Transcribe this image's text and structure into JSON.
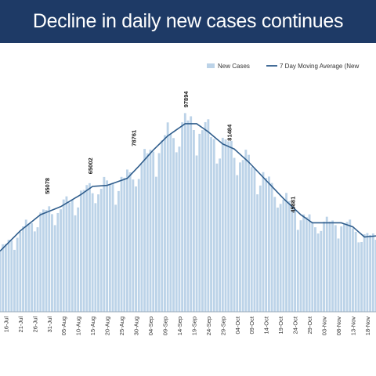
{
  "header": {
    "title": "Decline in daily new cases continues",
    "background": "#1e3a66",
    "text_color": "#ffffff"
  },
  "chart_data": {
    "type": "bar",
    "title": "Decline in daily new cases continues",
    "xlabel": "",
    "ylabel": "",
    "legend_position": "top-right",
    "grid": false,
    "legend": [
      {
        "label": "New Cases",
        "kind": "bar",
        "color": "#bcd3e8"
      },
      {
        "label": "7 Day Moving Average (New",
        "kind": "line",
        "color": "#2f5d8c"
      }
    ],
    "x_ticks": [
      "16-Jul",
      "21-Jul",
      "26-Jul",
      "31-Jul",
      "05-Aug",
      "10-Aug",
      "15-Aug",
      "20-Aug",
      "25-Aug",
      "30-Aug",
      "04-Sep",
      "09-Sep",
      "14-Sep",
      "19-Sep",
      "24-Sep",
      "29-Sep",
      "04-Oct",
      "09-Oct",
      "14-Oct",
      "19-Oct",
      "24-Oct",
      "29-Oct",
      "03-Nov",
      "08-Nov",
      "13-Nov",
      "18-Nov"
    ],
    "annotations": [
      {
        "date": "31-Jul",
        "label": "55078",
        "value": 55078
      },
      {
        "date": "15-Aug",
        "label": "65002",
        "value": 65002
      },
      {
        "date": "30-Aug",
        "label": "78761",
        "value": 78761
      },
      {
        "date": "17-Sep",
        "label": "97894",
        "value": 97894
      },
      {
        "date": "02-Oct",
        "label": "81484",
        "value": 81484
      },
      {
        "date": "24-Oct",
        "label": "45881",
        "value": 45881
      }
    ],
    "moving_average_keypoints": [
      {
        "date": "14-Jul",
        "value": 30000
      },
      {
        "date": "21-Jul",
        "value": 40000
      },
      {
        "date": "28-Jul",
        "value": 48000
      },
      {
        "date": "04-Aug",
        "value": 52000
      },
      {
        "date": "11-Aug",
        "value": 58000
      },
      {
        "date": "15-Aug",
        "value": 62000
      },
      {
        "date": "20-Aug",
        "value": 62500
      },
      {
        "date": "27-Aug",
        "value": 66000
      },
      {
        "date": "31-Aug",
        "value": 72000
      },
      {
        "date": "05-Sep",
        "value": 80000
      },
      {
        "date": "10-Sep",
        "value": 87000
      },
      {
        "date": "16-Sep",
        "value": 93000
      },
      {
        "date": "20-Sep",
        "value": 93000
      },
      {
        "date": "24-Sep",
        "value": 89000
      },
      {
        "date": "29-Sep",
        "value": 83000
      },
      {
        "date": "03-Oct",
        "value": 80500
      },
      {
        "date": "08-Oct",
        "value": 74000
      },
      {
        "date": "14-Oct",
        "value": 65000
      },
      {
        "date": "20-Oct",
        "value": 56000
      },
      {
        "date": "26-Oct",
        "value": 48000
      },
      {
        "date": "30-Oct",
        "value": 44000
      },
      {
        "date": "03-Nov",
        "value": 44000
      },
      {
        "date": "09-Nov",
        "value": 44000
      },
      {
        "date": "13-Nov",
        "value": 42000
      },
      {
        "date": "17-Nov",
        "value": 37000
      },
      {
        "date": "21-Nov",
        "value": 37500
      }
    ],
    "ylim": [
      0,
      105000
    ],
    "date_range": [
      "14-Jul",
      "21-Nov"
    ]
  }
}
